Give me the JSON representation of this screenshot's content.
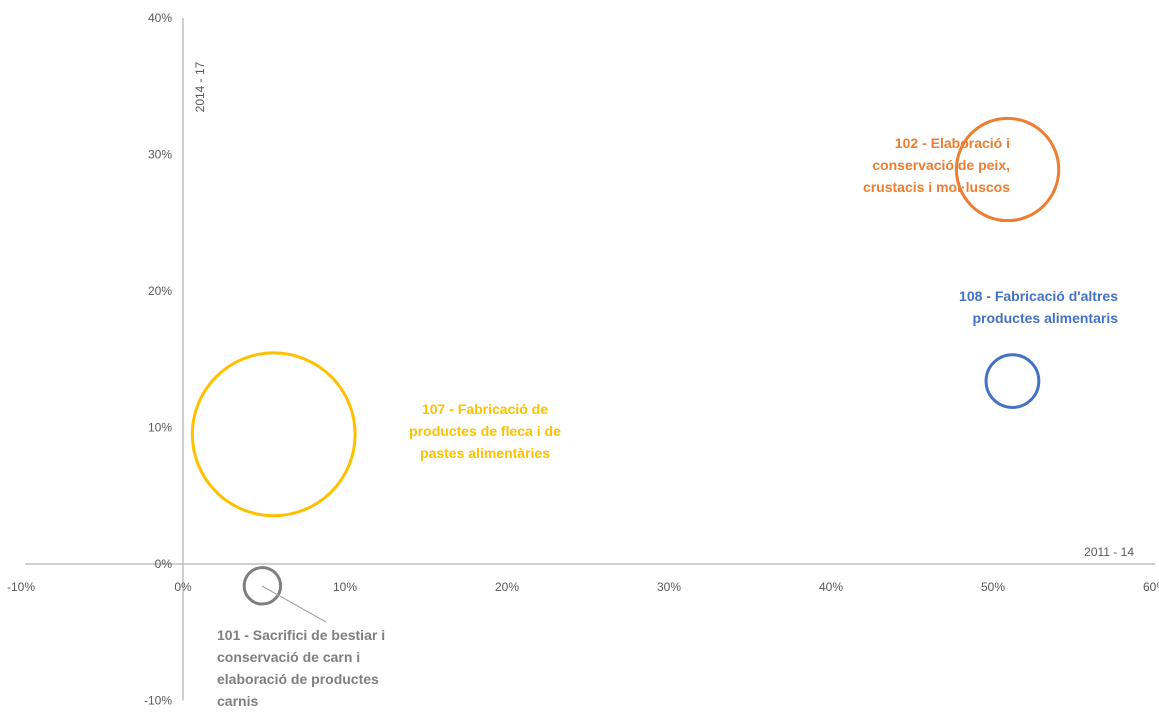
{
  "chart_data": {
    "type": "bubble",
    "title": "",
    "xlabel": "2011 - 14",
    "ylabel": "2014 - 17",
    "xlim": [
      -10,
      60
    ],
    "ylim": [
      -10,
      40
    ],
    "x_ticks": [
      -10,
      0,
      10,
      20,
      30,
      40,
      50,
      60
    ],
    "y_ticks": [
      -10,
      0,
      10,
      20,
      30,
      40
    ],
    "x_tick_labels": [
      "-10%",
      "0%",
      "10%",
      "20%",
      "30%",
      "40%",
      "50%",
      "60%"
    ],
    "y_tick_labels": [
      "-10%",
      "0%",
      "10%",
      "20%",
      "30%",
      "40%"
    ],
    "grid": false,
    "legend": "none",
    "points": [
      {
        "id": "101",
        "label": [
          "101 - Sacrifici de bestiar i",
          "conservació de carn i",
          "elaboració de productes",
          "carnis"
        ],
        "x": 4.9,
        "y": -1.6,
        "size": 1,
        "color": "#7f7f7f"
      },
      {
        "id": "102",
        "label": [
          "102 - Elaboració i",
          "conservació de peix,",
          "crustacis i mol·luscos"
        ],
        "x": 50.9,
        "y": 28.9,
        "size": 7.9,
        "color": "#ed7d31"
      },
      {
        "id": "107",
        "label": [
          "107 - Fabricació de",
          "productes de fleca i de",
          "pastes alimentàries"
        ],
        "x": 5.6,
        "y": 9.5,
        "size": 20,
        "color": "#ffc000"
      },
      {
        "id": "108",
        "label": [
          "108 - Fabricació d'altres",
          "productes alimentaris"
        ],
        "x": 51.2,
        "y": 13.4,
        "size": 2.1,
        "color": "#4472c4"
      }
    ]
  }
}
